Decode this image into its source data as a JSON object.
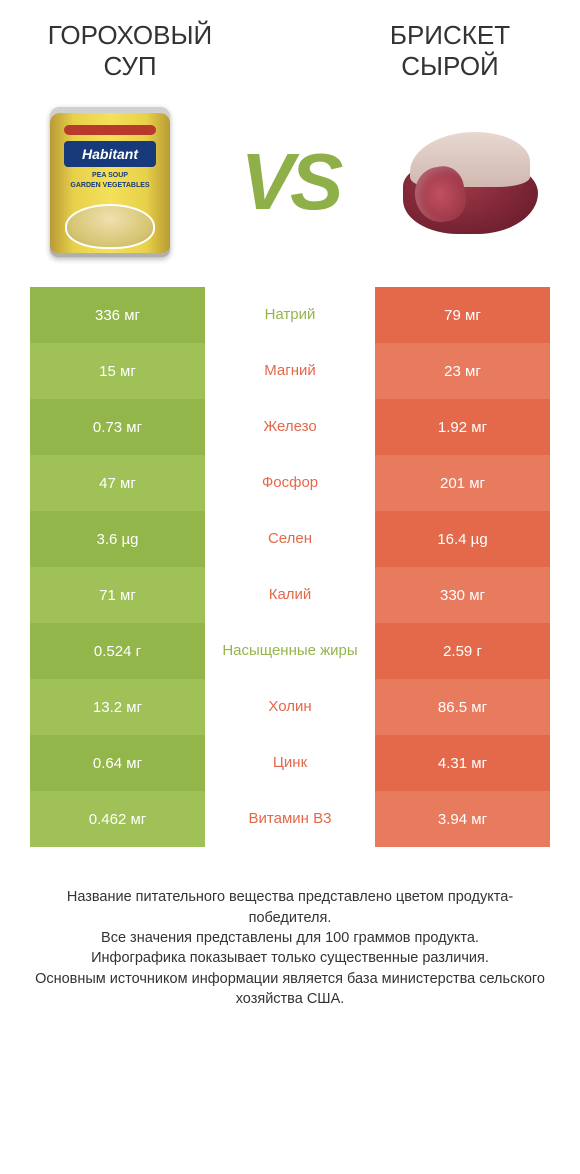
{
  "header": {
    "left_title_line1": "ГОРОХОВЫЙ",
    "left_title_line2": "СУП",
    "right_title_line1": "БРИСКЕТ",
    "right_title_line2": "СЫРОЙ",
    "vs": "VS",
    "can_logo": "Habitant",
    "can_sub1": "PEA SOUP",
    "can_sub2": "GARDEN VEGETABLES"
  },
  "colors": {
    "green": "#93b64b",
    "green_alt": "#a0c158",
    "orange": "#e4684a",
    "orange_alt": "#e87a5e"
  },
  "rows": [
    {
      "nutrient": "Натрий",
      "left": "336 мг",
      "right": "79 мг",
      "winner": "left"
    },
    {
      "nutrient": "Магний",
      "left": "15 мг",
      "right": "23 мг",
      "winner": "right"
    },
    {
      "nutrient": "Железо",
      "left": "0.73 мг",
      "right": "1.92 мг",
      "winner": "right"
    },
    {
      "nutrient": "Фосфор",
      "left": "47 мг",
      "right": "201 мг",
      "winner": "right"
    },
    {
      "nutrient": "Селен",
      "left": "3.6 µg",
      "right": "16.4 µg",
      "winner": "right"
    },
    {
      "nutrient": "Калий",
      "left": "71 мг",
      "right": "330 мг",
      "winner": "right"
    },
    {
      "nutrient": "Насыщенные жиры",
      "left": "0.524 г",
      "right": "2.59 г",
      "winner": "left"
    },
    {
      "nutrient": "Холин",
      "left": "13.2 мг",
      "right": "86.5 мг",
      "winner": "right"
    },
    {
      "nutrient": "Цинк",
      "left": "0.64 мг",
      "right": "4.31 мг",
      "winner": "right"
    },
    {
      "nutrient": "Витамин B3",
      "left": "0.462 мг",
      "right": "3.94 мг",
      "winner": "right"
    }
  ],
  "footer": {
    "line1": "Название питательного вещества представлено цветом продукта-победителя.",
    "line2": "Все значения представлены для 100 граммов продукта.",
    "line3": "Инфографика показывает только существенные различия.",
    "line4": "Основным источником информации является база министерства сельского хозяйства США."
  }
}
